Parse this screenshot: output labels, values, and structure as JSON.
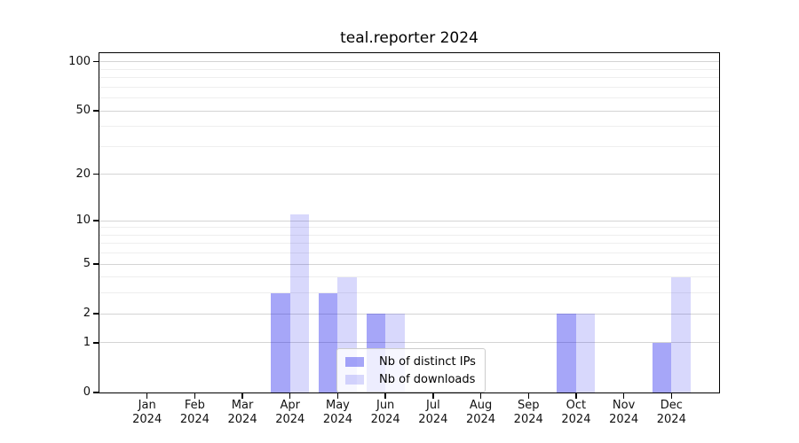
{
  "figure": {
    "title": "teal.reporter 2024"
  },
  "chart_data": {
    "type": "bar",
    "title": "teal.reporter 2024",
    "categories": [
      "Jan",
      "Feb",
      "Mar",
      "Apr",
      "May",
      "Jun",
      "Jul",
      "Aug",
      "Sep",
      "Oct",
      "Nov",
      "Dec"
    ],
    "category_year": "2024",
    "series": [
      {
        "name": "Nb of distinct IPs",
        "color": "#a8a8f3",
        "css_color": "rgba(13,13,235,0.37)",
        "values": [
          0,
          0,
          0,
          3,
          3,
          2,
          0,
          0,
          0,
          2,
          0,
          1
        ]
      },
      {
        "name": "Nb of downloads",
        "color": "#dbdbf9",
        "css_color": "rgba(13,13,235,0.16)",
        "values": [
          0,
          0,
          0,
          11,
          4,
          2,
          0,
          0,
          0,
          2,
          0,
          4
        ]
      }
    ],
    "yscale": "log1p",
    "ylim": [
      0,
      113
    ],
    "yticks": [
      0,
      1,
      2,
      5,
      10,
      20,
      50,
      100
    ],
    "yticks_minor": [
      3,
      4,
      6,
      7,
      8,
      9,
      30,
      40,
      60,
      70,
      80,
      90
    ],
    "grid": true,
    "legend_position": "lower center"
  },
  "colors": {
    "grid_major": "#d4d4d4",
    "grid_minor": "#eeeeee",
    "spine": "#000000",
    "text": "#111111"
  }
}
